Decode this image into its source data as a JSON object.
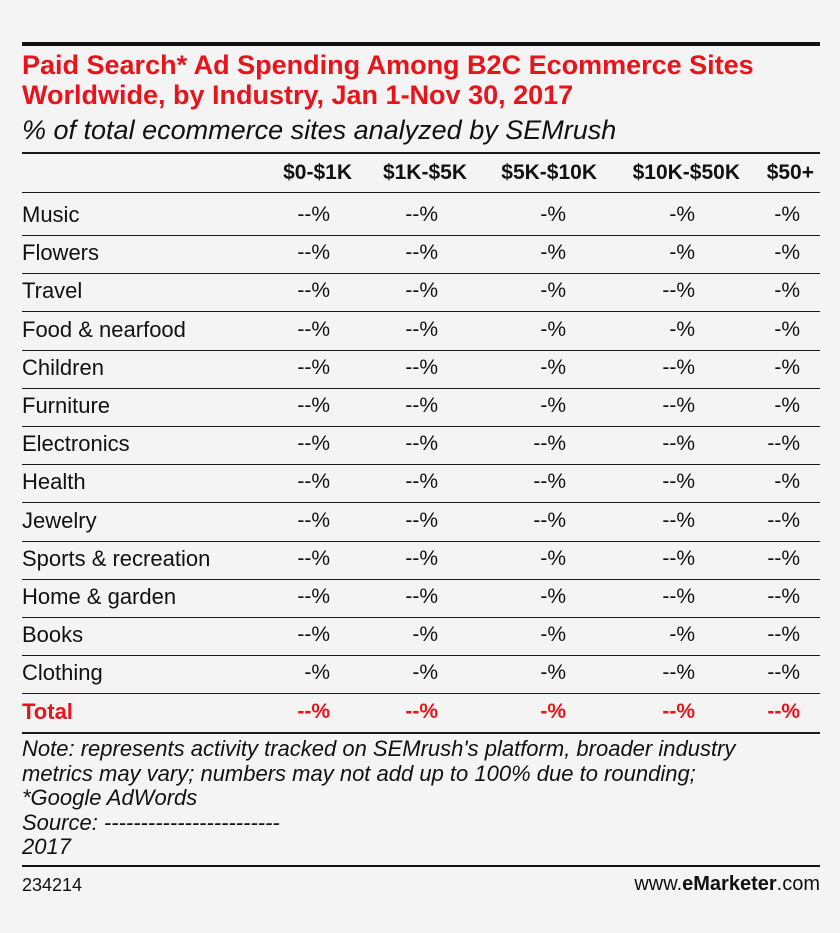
{
  "chart_data": {
    "type": "table",
    "title": "Paid Search* Ad Spending Among B2C Ecommerce Sites Worldwide, by Industry, Jan 1-Nov 30, 2017",
    "subtitle": "% of total ecommerce sites analyzed by SEMrush",
    "columns": [
      "$0-$1K",
      "$1K-$5K",
      "$5K-$10K",
      "$10K-$50K",
      "$50+"
    ],
    "rows": [
      {
        "label": "Music",
        "values": [
          "--%",
          "--%",
          "-%",
          "-%",
          "-%"
        ]
      },
      {
        "label": "Flowers",
        "values": [
          "--%",
          "--%",
          "-%",
          "-%",
          "-%"
        ]
      },
      {
        "label": "Travel",
        "values": [
          "--%",
          "--%",
          "-%",
          "--%",
          "-%"
        ]
      },
      {
        "label": "Food & nearfood",
        "values": [
          "--%",
          "--%",
          "-%",
          "-%",
          "-%"
        ]
      },
      {
        "label": "Children",
        "values": [
          "--%",
          "--%",
          "-%",
          "--%",
          "-%"
        ]
      },
      {
        "label": "Furniture",
        "values": [
          "--%",
          "--%",
          "-%",
          "--%",
          "-%"
        ]
      },
      {
        "label": "Electronics",
        "values": [
          "--%",
          "--%",
          "--%",
          "--%",
          "--%"
        ]
      },
      {
        "label": "Health",
        "values": [
          "--%",
          "--%",
          "--%",
          "--%",
          "-%"
        ]
      },
      {
        "label": "Jewelry",
        "values": [
          "--%",
          "--%",
          "--%",
          "--%",
          "--%"
        ]
      },
      {
        "label": "Sports & recreation",
        "values": [
          "--%",
          "--%",
          "-%",
          "--%",
          "--%"
        ]
      },
      {
        "label": "Home & garden",
        "values": [
          "--%",
          "--%",
          "-%",
          "--%",
          "--%"
        ]
      },
      {
        "label": "Books",
        "values": [
          "--%",
          "-%",
          "-%",
          "-%",
          "--%"
        ]
      },
      {
        "label": "Clothing",
        "values": [
          "-%",
          "-%",
          "-%",
          "--%",
          "--%"
        ]
      }
    ],
    "total": {
      "label": "Total",
      "values": [
        "--%",
        "--%",
        "-%",
        "--%",
        "--%"
      ]
    }
  },
  "note": {
    "line1": "Note: represents activity tracked on SEMrush's platform, broader industry",
    "line2": "metrics may vary; numbers may not add up to 100% due to rounding;",
    "line3": "*Google AdWords",
    "line4": "Source: ------------------------",
    "line5": "2017"
  },
  "footer": {
    "id": "234214",
    "site_prefix": "www.",
    "brand_bold": "eMarketer",
    "site_suffix": ".com"
  },
  "colors": {
    "accent": "#e8141b",
    "text": "#111111",
    "background": "#f4f4f4"
  }
}
